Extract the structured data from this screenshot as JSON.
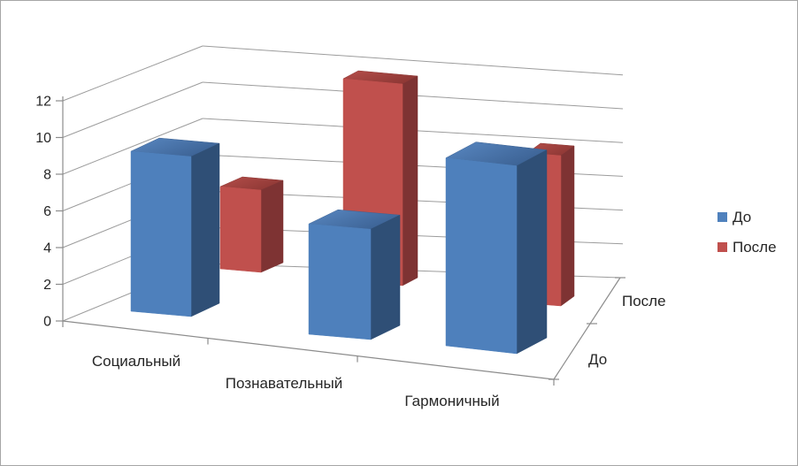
{
  "chart_data": {
    "type": "bar",
    "variant": "3d-column",
    "title": "",
    "categories": [
      "Социальный",
      "Познавательный",
      "Гармоничный"
    ],
    "series": [
      {
        "name": "До",
        "values": [
          9,
          6,
          9
        ],
        "color": "#4F81BD",
        "face_front": "#4E80BC",
        "face_top_light": "#5988C2",
        "face_top_dark": "#3C6294",
        "face_side": "#2F4F76"
      },
      {
        "name": "После",
        "values": [
          5,
          12,
          8
        ],
        "color": "#C0504D",
        "face_front": "#C0504D",
        "face_top_light": "#B54E4A",
        "face_top_dark": "#8E3835",
        "face_side": "#7E3333"
      }
    ],
    "value_axis": {
      "min": 0,
      "max": 12,
      "step": 2,
      "tick_labels": [
        "0",
        "2",
        "4",
        "6",
        "8",
        "10",
        "12"
      ]
    },
    "depth_axis": {
      "labels_front_to_back": [
        "До",
        "После"
      ]
    },
    "legend": {
      "position": "right",
      "entries": [
        {
          "label": "До",
          "color": "#4F81BD"
        },
        {
          "label": "После",
          "color": "#C0504D"
        }
      ]
    },
    "gridlines": true
  },
  "frame": {
    "background": "#FFFFFF",
    "border_color": "#A6A6A6",
    "grid_color": "#9C9C9C",
    "axis_color": "#8C8C8C",
    "text_color": "#262626"
  }
}
